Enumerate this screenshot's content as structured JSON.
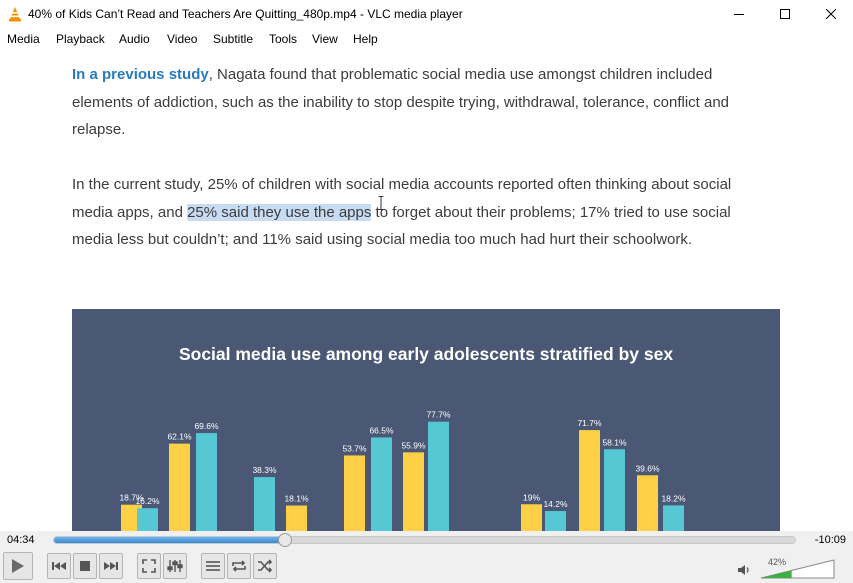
{
  "window": {
    "title": "40% of Kids Can’t Read and Teachers Are Quitting_480p.mp4 - VLC media player"
  },
  "menu": [
    "Media",
    "Playback",
    "Audio",
    "Video",
    "Subtitle",
    "Tools",
    "View",
    "Help"
  ],
  "video_text": {
    "para1_link": "In a previous study",
    "para1_line1_rest": ", Nagata found that problematic social media use amongst children included",
    "para1_line2": "elements of addiction, such as the inability to stop despite trying, withdrawal, tolerance, conflict and",
    "para1_line3": "relapse.",
    "para2_line1": "In the current study, 25% of children with social media accounts reported often thinking about social",
    "para2_line2_pre": "media apps, and ",
    "para2_line2_highlight": "25% said they use the apps",
    "para2_line2_post": " to forget about their problems; 17% tried to use social",
    "para2_line3": "media less but couldn’t; and 11% said using social media too much had hurt their schoolwork."
  },
  "chart_data": {
    "type": "bar",
    "title": "Social media use among early adolescents stratified by sex",
    "colors": {
      "female": "#fdd046",
      "male": "#55c8d4",
      "background": "#4a5876"
    },
    "bars": [
      {
        "value": 18.7,
        "label": "18.7%",
        "color": "female"
      },
      {
        "value": 16.2,
        "label": "16.2%",
        "color": "male"
      },
      {
        "value": 62.1,
        "label": "62.1%",
        "color": "female"
      },
      {
        "value": 69.6,
        "label": "69.6%",
        "color": "male"
      },
      {
        "value": 38.3,
        "label": "38.3%",
        "color": "male"
      },
      {
        "value": 18.1,
        "label": "18.1%",
        "color": "female"
      },
      {
        "value": 53.7,
        "label": "53.7%",
        "color": "female"
      },
      {
        "value": 66.5,
        "label": "66.5%",
        "color": "male"
      },
      {
        "value": 55.9,
        "label": "55.9%",
        "color": "female"
      },
      {
        "value": 77.7,
        "label": "77.7%",
        "color": "male"
      },
      {
        "value": 19,
        "label": "19%",
        "color": "female"
      },
      {
        "value": 14.2,
        "label": "14.2%",
        "color": "male"
      },
      {
        "value": 71.7,
        "label": "71.7%",
        "color": "female"
      },
      {
        "value": 58.1,
        "label": "58.1%",
        "color": "male"
      },
      {
        "value": 39.6,
        "label": "39.6%",
        "color": "female"
      },
      {
        "value": 18.2,
        "label": "18.2%",
        "color": "male"
      }
    ]
  },
  "player": {
    "time_elapsed": "04:34",
    "time_remaining": "-10:09",
    "progress_fraction": 0.311,
    "volume_label": "42%",
    "volume_fraction": 0.42
  }
}
